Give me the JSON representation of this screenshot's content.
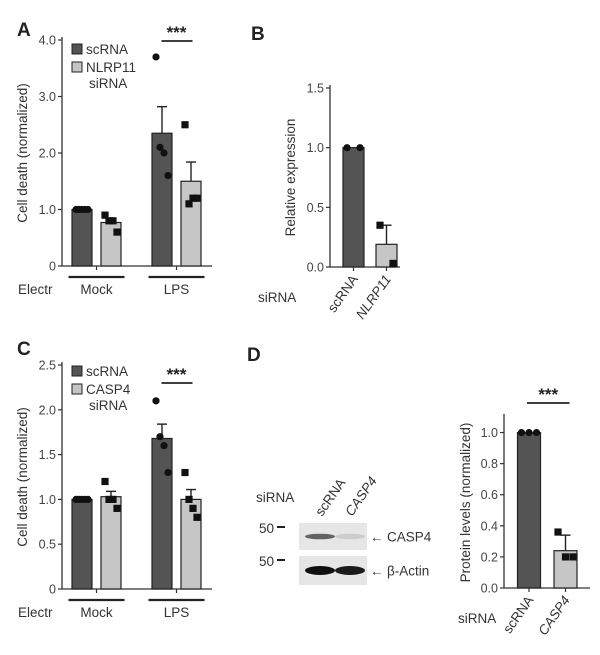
{
  "panel_letters": [
    "A",
    "B",
    "C",
    "D"
  ],
  "colors": {
    "dark_bar": "#545454",
    "light_bar": "#c6c6c6",
    "axis": "#333333"
  },
  "chart_data": [
    {
      "panel": "A",
      "type": "bar",
      "ylabel": "Cell death (normalized)",
      "ylim": [
        0,
        4
      ],
      "yticks": [
        0,
        1,
        2,
        3,
        4
      ],
      "ytick_labels": [
        "0",
        "1.0",
        "2.0",
        "3.0",
        "4.0"
      ],
      "group_label_prefix": "Electr",
      "groups": [
        "Mock",
        "LPS"
      ],
      "legend_position": "top-left",
      "series": [
        {
          "name": "scRNA",
          "legend_lines": [
            "scRNA"
          ],
          "color": "#545454",
          "marker": "circle",
          "values": [
            1.0,
            2.35
          ],
          "errors": [
            0,
            0.47
          ],
          "points": [
            [
              1.0,
              1.0,
              1.0,
              1.0,
              1.0
            ],
            [
              3.7,
              2.1,
              2.0,
              1.6
            ]
          ]
        },
        {
          "name": "NLRP11 siRNA",
          "legend_lines": [
            "NLRP11",
            "siRNA"
          ],
          "color": "#c6c6c6",
          "marker": "square",
          "values": [
            0.77,
            1.5
          ],
          "errors": [
            0.06,
            0.34
          ],
          "points": [
            [
              0.9,
              0.8,
              0.8,
              0.6
            ],
            [
              2.5,
              1.1,
              1.2,
              1.2
            ]
          ]
        }
      ],
      "significance": {
        "group": "LPS",
        "label": "***"
      }
    },
    {
      "panel": "B",
      "type": "bar",
      "ylabel": "Relative expression",
      "ylim": [
        0,
        1.5
      ],
      "yticks": [
        0,
        0.5,
        1.0,
        1.5
      ],
      "ytick_labels": [
        "0.0",
        "0.5",
        "1.0",
        "1.5"
      ],
      "category_label_prefix": "siRNA",
      "categories": [
        "scRNA",
        "NLRP11"
      ],
      "italic_categories": [
        false,
        true
      ],
      "values": [
        1.0,
        0.19
      ],
      "errors": [
        0,
        0.16
      ],
      "colors": [
        "#545454",
        "#c6c6c6"
      ],
      "markers": [
        "circle",
        "square"
      ],
      "points": [
        [
          1.0,
          1.0
        ],
        [
          0.35,
          0.03
        ]
      ]
    },
    {
      "panel": "C",
      "type": "bar",
      "ylabel": "Cell death (normalized)",
      "ylim": [
        0,
        2.5
      ],
      "yticks": [
        0,
        0.5,
        1.0,
        1.5,
        2.0,
        2.5
      ],
      "ytick_labels": [
        "0",
        "0.5",
        "1.0",
        "1.5",
        "2.0",
        "2.5"
      ],
      "group_label_prefix": "Electr",
      "groups": [
        "Mock",
        "LPS"
      ],
      "legend_position": "top-left",
      "series": [
        {
          "name": "scRNA",
          "legend_lines": [
            "scRNA"
          ],
          "color": "#545454",
          "marker": "circle",
          "values": [
            1.0,
            1.68
          ],
          "errors": [
            0,
            0.16
          ],
          "points": [
            [
              1.0,
              1.0,
              1.0,
              1.0,
              1.0
            ],
            [
              2.1,
              1.7,
              1.6,
              1.3
            ]
          ]
        },
        {
          "name": "CASP4 siRNA",
          "legend_lines": [
            "CASP4",
            "siRNA"
          ],
          "color": "#c6c6c6",
          "marker": "square",
          "values": [
            1.03,
            1.0
          ],
          "errors": [
            0.06,
            0.11
          ],
          "points": [
            [
              1.2,
              1.0,
              1.0,
              0.9
            ],
            [
              1.3,
              1.0,
              0.9,
              0.8
            ]
          ]
        }
      ],
      "significance": {
        "group": "LPS",
        "label": "***"
      }
    },
    {
      "panel": "D",
      "type": "bar",
      "ylabel": "Protein levels (normalized)",
      "ylim": [
        0,
        1.1
      ],
      "yticks": [
        0,
        0.2,
        0.4,
        0.6,
        0.8,
        1.0
      ],
      "ytick_labels": [
        "0.0",
        "0.2",
        "0.4",
        "0.6",
        "0.8",
        "1.0"
      ],
      "category_label_prefix": "siRNA",
      "categories": [
        "scRNA",
        "CASP4"
      ],
      "italic_categories": [
        false,
        true
      ],
      "values": [
        1.0,
        0.24
      ],
      "errors": [
        0,
        0.1
      ],
      "colors": [
        "#545454",
        "#c6c6c6"
      ],
      "markers": [
        "circle",
        "square"
      ],
      "points": [
        [
          1.0,
          1.0,
          1.0
        ],
        [
          0.36,
          0.2,
          0.2
        ]
      ],
      "significance": {
        "label": "***"
      }
    }
  ],
  "western_blot": {
    "row_label": "siRNA",
    "lanes": [
      "scRNA",
      "CASP4"
    ],
    "italic_lanes": [
      false,
      true
    ],
    "rows": [
      {
        "marker_kda": "50",
        "target": "CASP4",
        "arrow": "←",
        "band_intensity": [
          0.6,
          0.1
        ]
      },
      {
        "marker_kda": "50",
        "target": "β-Actin",
        "arrow": "←",
        "band_intensity": [
          1.0,
          0.95
        ]
      }
    ]
  }
}
